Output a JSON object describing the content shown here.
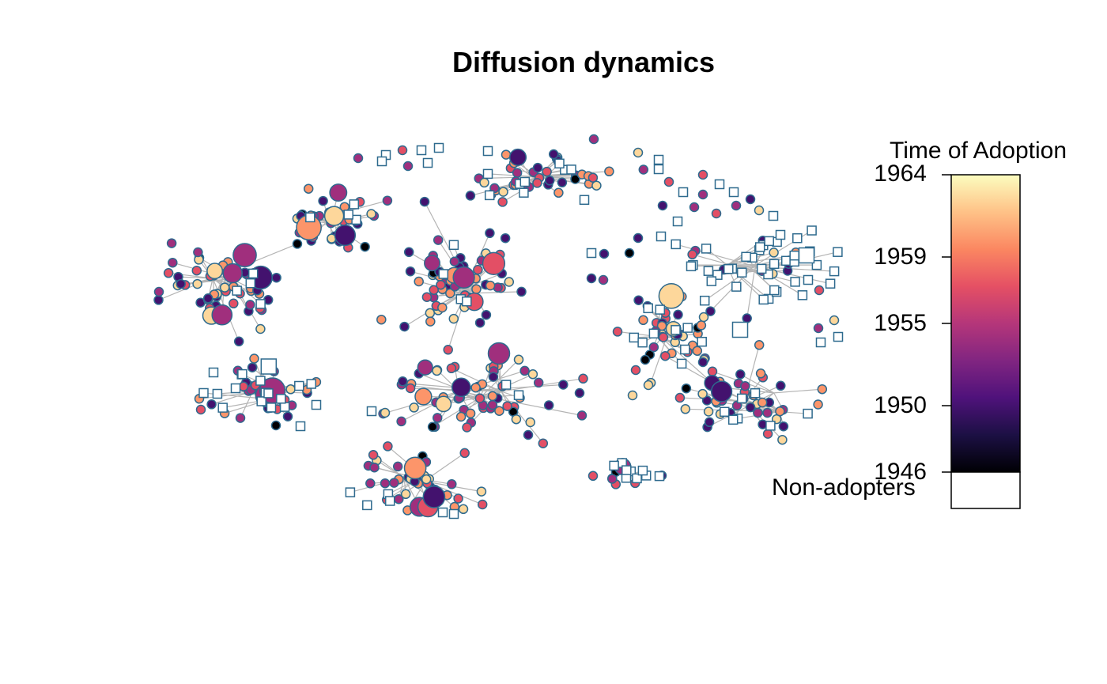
{
  "plot": {
    "title": "Diffusion dynamics"
  },
  "legend": {
    "title": "Time of Adoption",
    "ticks": [
      "1964",
      "1959",
      "1955",
      "1950",
      "1946"
    ],
    "tick_years": [
      1964,
      1959,
      1955,
      1950,
      1946
    ],
    "year_min": 1946,
    "year_max": 1964,
    "non_adopters_label": "Non-adopters",
    "non_adopter_color": "#ffffff",
    "palette": [
      "#000004",
      "#1c1044",
      "#4f127b",
      "#812581",
      "#b5367a",
      "#e55064",
      "#fb8761",
      "#fec287",
      "#fcfdbf"
    ],
    "node_border_color": "#2e6a8e",
    "edge_color": "#b4b4b4"
  },
  "network": {
    "node_shape_adopter": "circle",
    "node_shape_non_adopter": "square",
    "n_nodes": 540,
    "n_clusters": 11
  }
}
